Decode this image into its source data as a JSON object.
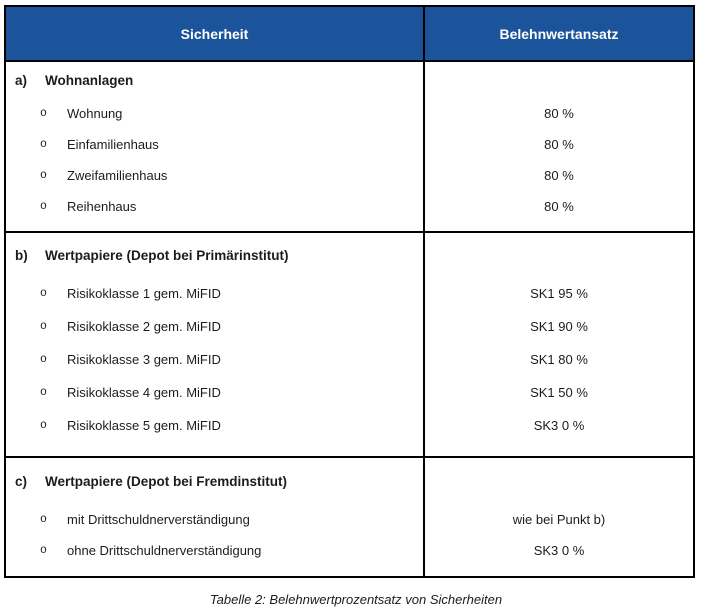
{
  "table": {
    "columns": [
      "Sicherheit",
      "Belehnwertansatz"
    ],
    "sections": [
      {
        "letter": "a)",
        "title": "Wohnanlagen",
        "items": [
          {
            "bullet": "o",
            "label": "Wohnung",
            "value": "80 %"
          },
          {
            "bullet": "o",
            "label": "Einfamilienhaus",
            "value": "80 %"
          },
          {
            "bullet": "o",
            "label": "Zweifamilienhaus",
            "value": "80 %"
          },
          {
            "bullet": "o",
            "label": "Reihenhaus",
            "value": "80 %"
          }
        ]
      },
      {
        "letter": "b)",
        "title": "Wertpapiere (Depot bei Primärinstitut)",
        "items": [
          {
            "bullet": "o",
            "label": "Risikoklasse 1 gem. MiFID",
            "value": "SK1 95 %"
          },
          {
            "bullet": "o",
            "label": "Risikoklasse 2 gem. MiFID",
            "value": "SK1 90 %"
          },
          {
            "bullet": "o",
            "label": "Risikoklasse 3 gem. MiFID",
            "value": "SK1 80 %"
          },
          {
            "bullet": "o",
            "label": "Risikoklasse 4 gem. MiFID",
            "value": "SK1 50 %"
          },
          {
            "bullet": "o",
            "label": "Risikoklasse 5 gem. MiFID",
            "value": "SK3 0 %"
          }
        ]
      },
      {
        "letter": "c)",
        "title": "Wertpapiere (Depot bei Fremdinstitut)",
        "items": [
          {
            "bullet": "o",
            "label": "mit Drittschuldnerverständigung",
            "value": "wie bei Punkt b)"
          },
          {
            "bullet": "o",
            "label": "ohne Drittschuldnerverständigung",
            "value": "SK3 0 %"
          }
        ]
      }
    ]
  },
  "caption": "Tabelle 2: Belehnwertprozentsatz von Sicherheiten",
  "colors": {
    "header_bg": "#1B549B",
    "header_text": "#FFFFFF",
    "border": "#000000",
    "text": "#1C1C1C"
  }
}
